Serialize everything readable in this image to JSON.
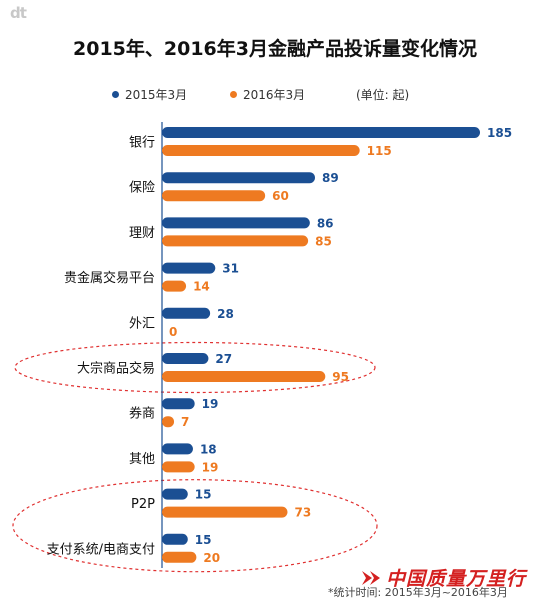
{
  "logo": "dt",
  "title": "2015年、2016年3月金融产品投诉量变化情况",
  "legend": {
    "series1": "2015年3月",
    "series2": "2016年3月",
    "unit": "(单位: 起)"
  },
  "footnote": "*统计时间: 2015年3月~2016年3月",
  "brand": "中国质量万里行",
  "colors": {
    "series1": "#1b4f93",
    "series2": "#ee7a21",
    "axis": "#1b4f93",
    "highlight": "#e03030"
  },
  "chart_data": {
    "type": "bar",
    "orientation": "horizontal",
    "categories": [
      "银行",
      "保险",
      "理财",
      "贵金属交易平台",
      "外汇",
      "大宗商品交易",
      "券商",
      "其他",
      "P2P",
      "支付系统/电商支付"
    ],
    "series": [
      {
        "name": "2015年3月",
        "values": [
          185,
          89,
          86,
          31,
          28,
          27,
          19,
          18,
          15,
          15
        ]
      },
      {
        "name": "2016年3月",
        "values": [
          115,
          60,
          85,
          14,
          0,
          95,
          7,
          19,
          73,
          20
        ]
      }
    ],
    "xlim": [
      0,
      185
    ],
    "grid": false,
    "legend_position": "top",
    "highlighted_categories": [
      "大宗商品交易",
      "P2P",
      "支付系统/电商支付"
    ]
  }
}
